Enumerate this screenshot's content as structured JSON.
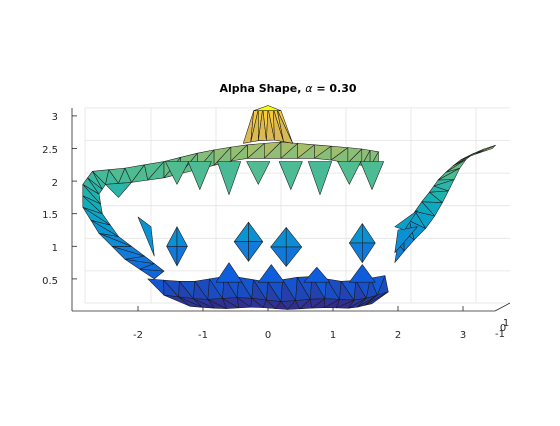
{
  "chart_data": {
    "type": "3d-surface",
    "title_prefix": "Alpha Shape, ",
    "title_symbol": "α",
    "title_suffix": " = 0.30",
    "view": "nearly side-on (elevation ~5 degrees)",
    "x_ticks": [
      "-2",
      "-1",
      "0",
      "1",
      "2",
      "3"
    ],
    "x_tick_values": [
      -2,
      -1,
      0,
      1,
      2,
      3
    ],
    "z_ticks": [
      "0.5",
      "1",
      "1.5",
      "2",
      "2.5",
      "3"
    ],
    "z_tick_values": [
      0.5,
      1,
      1.5,
      2,
      2.5,
      3
    ],
    "y_ticks": [
      "-1",
      "0",
      "1"
    ],
    "xlim": [
      -3,
      3.5
    ],
    "ylim": [
      -1.5,
      1.5
    ],
    "zlim": [
      0,
      3.1
    ],
    "colormap": "parula (z-height)",
    "grid": true
  }
}
